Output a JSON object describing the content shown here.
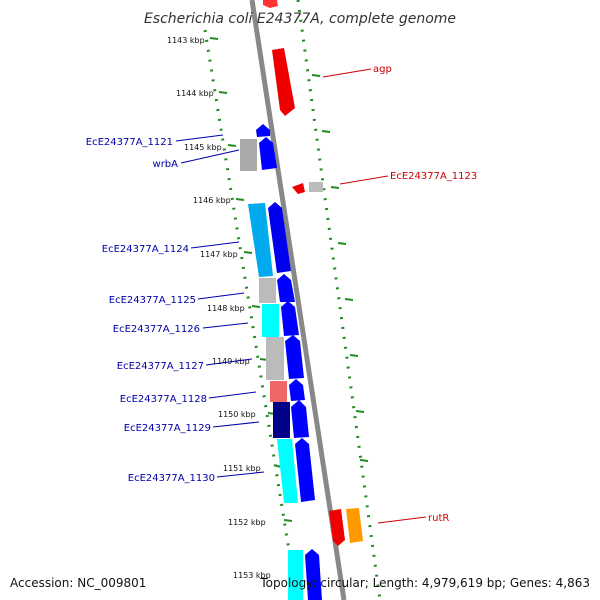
{
  "title": "Escherichia coli E24377A, complete genome",
  "footer": {
    "accession": "Accession: NC_009801",
    "summary": "Topology: circular; Length: 4,979,619 bp; Genes: 4,863"
  },
  "colors": {
    "backbone": "#888888",
    "dotted_track": "#228b22",
    "label_blue": "#0000aa",
    "label_red": "#cc0000"
  },
  "ticks": [
    {
      "label": "1143 kbp"
    },
    {
      "label": "1144 kbp"
    },
    {
      "label": "1145 kbp"
    },
    {
      "label": "1146 kbp"
    },
    {
      "label": "1147 kbp"
    },
    {
      "label": "1148 kbp"
    },
    {
      "label": "1149 kbp"
    },
    {
      "label": "1150 kbp"
    },
    {
      "label": "1151 kbp"
    },
    {
      "label": "1152 kbp"
    },
    {
      "label": "1153 kbp"
    }
  ],
  "gene_labels": [
    {
      "text": "agp",
      "color": "#cc0000"
    },
    {
      "text": "EcE24377A_1121",
      "color": "#0000aa"
    },
    {
      "text": "wrbA",
      "color": "#0000aa"
    },
    {
      "text": "EcE24377A_1123",
      "color": "#cc0000"
    },
    {
      "text": "EcE24377A_1124",
      "color": "#0000aa"
    },
    {
      "text": "EcE24377A_1125",
      "color": "#0000aa"
    },
    {
      "text": "EcE24377A_1126",
      "color": "#0000aa"
    },
    {
      "text": "EcE24377A_1127",
      "color": "#0000aa"
    },
    {
      "text": "EcE24377A_1128",
      "color": "#0000aa"
    },
    {
      "text": "EcE24377A_1129",
      "color": "#0000aa"
    },
    {
      "text": "EcE24377A_1130",
      "color": "#0000aa"
    },
    {
      "text": "rutR",
      "color": "#cc0000"
    }
  ]
}
